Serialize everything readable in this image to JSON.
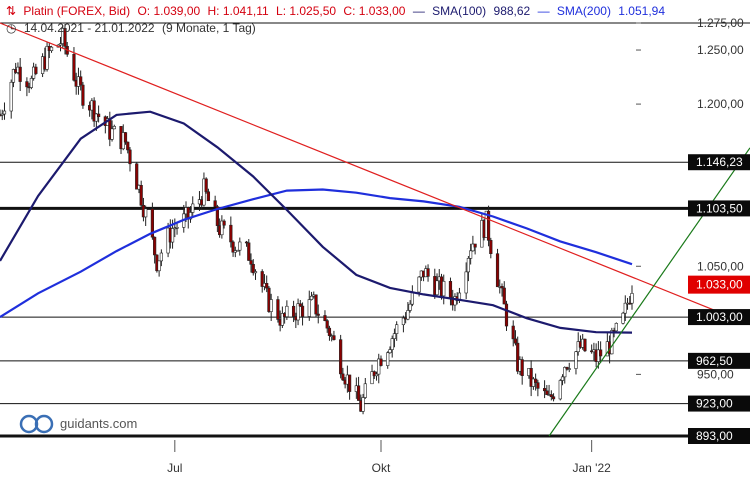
{
  "header": {
    "instrument": "Platin (FOREX, Bid)",
    "open": "O: 1.039,00",
    "high": "H: 1.041,11",
    "low": "L: 1.025,50",
    "close": "C: 1.033,00",
    "sma100_label": "SMA(100)",
    "sma100_value": "988,62",
    "sma200_label": "SMA(200)",
    "sma200_value": "1.051,94",
    "range": "14.04.2021 - 21.01.2022",
    "period": "(9 Monate, 1 Tag)"
  },
  "colors": {
    "price_header": "#d4000f",
    "sma100": "#1c1a6e",
    "sma200": "#1f2fdc",
    "trend_down": "#e02020",
    "trend_up": "#1a7a1a",
    "candle_up": "#ffffff",
    "candle_down": "#8b0000",
    "last_price_box": "#e00000",
    "level_box": "#0a0a0a"
  },
  "watermark": {
    "text": "guidants.com",
    "icon": "guidants-logo-icon"
  },
  "chart_data": {
    "type": "candlestick",
    "x_range": [
      "2021-04-14",
      "2022-01-21"
    ],
    "y_range": [
      882,
      1290
    ],
    "y_ticks": [
      {
        "value": 1275,
        "label": "1.275,00"
      },
      {
        "value": 1250,
        "label": "1.250,00"
      },
      {
        "value": 1200,
        "label": "1.200,00"
      },
      {
        "value": 1050,
        "label": "1.050,00"
      },
      {
        "value": 950,
        "label": "950,00"
      }
    ],
    "x_ticks": [
      {
        "date": "2021-07-01",
        "label": "Jul"
      },
      {
        "date": "2021-10-01",
        "label": "Okt"
      },
      {
        "date": "2022-01-03",
        "label": "Jan '22"
      }
    ],
    "horizontal_levels": [
      {
        "value": 1275,
        "label": "1.275,00",
        "style": "thin"
      },
      {
        "value": 1146.23,
        "label": "1.146,23",
        "style": "thin"
      },
      {
        "value": 1103.5,
        "label": "1.103,50",
        "style": "thick"
      },
      {
        "value": 1003,
        "label": "1.003,00",
        "style": "thin"
      },
      {
        "value": 962.5,
        "label": "962,50",
        "style": "thin"
      },
      {
        "value": 923,
        "label": "923,00",
        "style": "thin"
      },
      {
        "value": 893,
        "label": "893,00",
        "style": "thick"
      }
    ],
    "last_price": {
      "value": 1033,
      "label": "1.033,00"
    },
    "trendlines": [
      {
        "name": "down",
        "from": {
          "date": "2021-04-14",
          "value": 1275
        },
        "to": {
          "date": "2022-01-21",
          "value": 1040
        }
      },
      {
        "name": "up",
        "from": {
          "date": "2021-12-15",
          "value": 893
        },
        "to": {
          "date": "2022-01-21",
          "value": 1003
        }
      }
    ],
    "sma100": [
      {
        "date": "2021-04-14",
        "value": 1055
      },
      {
        "date": "2021-05-01",
        "value": 1115
      },
      {
        "date": "2021-05-20",
        "value": 1168
      },
      {
        "date": "2021-06-05",
        "value": 1190
      },
      {
        "date": "2021-06-20",
        "value": 1193
      },
      {
        "date": "2021-07-05",
        "value": 1182
      },
      {
        "date": "2021-07-20",
        "value": 1160
      },
      {
        "date": "2021-08-05",
        "value": 1133
      },
      {
        "date": "2021-08-20",
        "value": 1102
      },
      {
        "date": "2021-09-05",
        "value": 1068
      },
      {
        "date": "2021-09-20",
        "value": 1042
      },
      {
        "date": "2021-10-05",
        "value": 1030
      },
      {
        "date": "2021-10-20",
        "value": 1024
      },
      {
        "date": "2021-11-05",
        "value": 1019
      },
      {
        "date": "2021-11-20",
        "value": 1014
      },
      {
        "date": "2021-12-05",
        "value": 1002
      },
      {
        "date": "2021-12-20",
        "value": 993
      },
      {
        "date": "2022-01-05",
        "value": 989
      },
      {
        "date": "2022-01-21",
        "value": 988.62
      }
    ],
    "sma200": [
      {
        "date": "2021-04-14",
        "value": 1003
      },
      {
        "date": "2021-05-01",
        "value": 1025
      },
      {
        "date": "2021-05-20",
        "value": 1045
      },
      {
        "date": "2021-06-05",
        "value": 1064
      },
      {
        "date": "2021-06-20",
        "value": 1080
      },
      {
        "date": "2021-07-05",
        "value": 1093
      },
      {
        "date": "2021-07-20",
        "value": 1103
      },
      {
        "date": "2021-08-05",
        "value": 1112
      },
      {
        "date": "2021-08-20",
        "value": 1120
      },
      {
        "date": "2021-09-05",
        "value": 1121
      },
      {
        "date": "2021-09-20",
        "value": 1118
      },
      {
        "date": "2021-10-05",
        "value": 1113
      },
      {
        "date": "2021-10-20",
        "value": 1110
      },
      {
        "date": "2021-11-05",
        "value": 1105
      },
      {
        "date": "2021-11-20",
        "value": 1096
      },
      {
        "date": "2021-12-05",
        "value": 1085
      },
      {
        "date": "2021-12-20",
        "value": 1073
      },
      {
        "date": "2022-01-05",
        "value": 1063
      },
      {
        "date": "2022-01-21",
        "value": 1051.94
      }
    ],
    "close_path": [
      {
        "date": "2021-04-14",
        "value": 1190
      },
      {
        "date": "2021-04-21",
        "value": 1235
      },
      {
        "date": "2021-04-28",
        "value": 1220
      },
      {
        "date": "2021-05-05",
        "value": 1245
      },
      {
        "date": "2021-05-12",
        "value": 1260
      },
      {
        "date": "2021-05-19",
        "value": 1215
      },
      {
        "date": "2021-05-26",
        "value": 1195
      },
      {
        "date": "2021-06-02",
        "value": 1175
      },
      {
        "date": "2021-06-09",
        "value": 1165
      },
      {
        "date": "2021-06-16",
        "value": 1115
      },
      {
        "date": "2021-06-23",
        "value": 1055
      },
      {
        "date": "2021-06-30",
        "value": 1085
      },
      {
        "date": "2021-07-07",
        "value": 1095
      },
      {
        "date": "2021-07-14",
        "value": 1120
      },
      {
        "date": "2021-07-21",
        "value": 1085
      },
      {
        "date": "2021-07-28",
        "value": 1070
      },
      {
        "date": "2021-08-04",
        "value": 1060
      },
      {
        "date": "2021-08-11",
        "value": 1020
      },
      {
        "date": "2021-08-18",
        "value": 1000
      },
      {
        "date": "2021-08-25",
        "value": 1010
      },
      {
        "date": "2021-09-01",
        "value": 1015
      },
      {
        "date": "2021-09-08",
        "value": 990
      },
      {
        "date": "2021-09-15",
        "value": 950
      },
      {
        "date": "2021-09-22",
        "value": 920
      },
      {
        "date": "2021-09-29",
        "value": 960
      },
      {
        "date": "2021-10-06",
        "value": 985
      },
      {
        "date": "2021-10-13",
        "value": 1010
      },
      {
        "date": "2021-10-20",
        "value": 1045
      },
      {
        "date": "2021-10-27",
        "value": 1030
      },
      {
        "date": "2021-11-03",
        "value": 1020
      },
      {
        "date": "2021-11-10",
        "value": 1070
      },
      {
        "date": "2021-11-17",
        "value": 1090
      },
      {
        "date": "2021-11-24",
        "value": 1020
      },
      {
        "date": "2021-12-01",
        "value": 960
      },
      {
        "date": "2021-12-08",
        "value": 940
      },
      {
        "date": "2021-12-15",
        "value": 925
      },
      {
        "date": "2021-12-22",
        "value": 960
      },
      {
        "date": "2021-12-29",
        "value": 975
      },
      {
        "date": "2022-01-05",
        "value": 965
      },
      {
        "date": "2022-01-12",
        "value": 980
      },
      {
        "date": "2022-01-17",
        "value": 1000
      },
      {
        "date": "2022-01-21",
        "value": 1033
      }
    ]
  }
}
